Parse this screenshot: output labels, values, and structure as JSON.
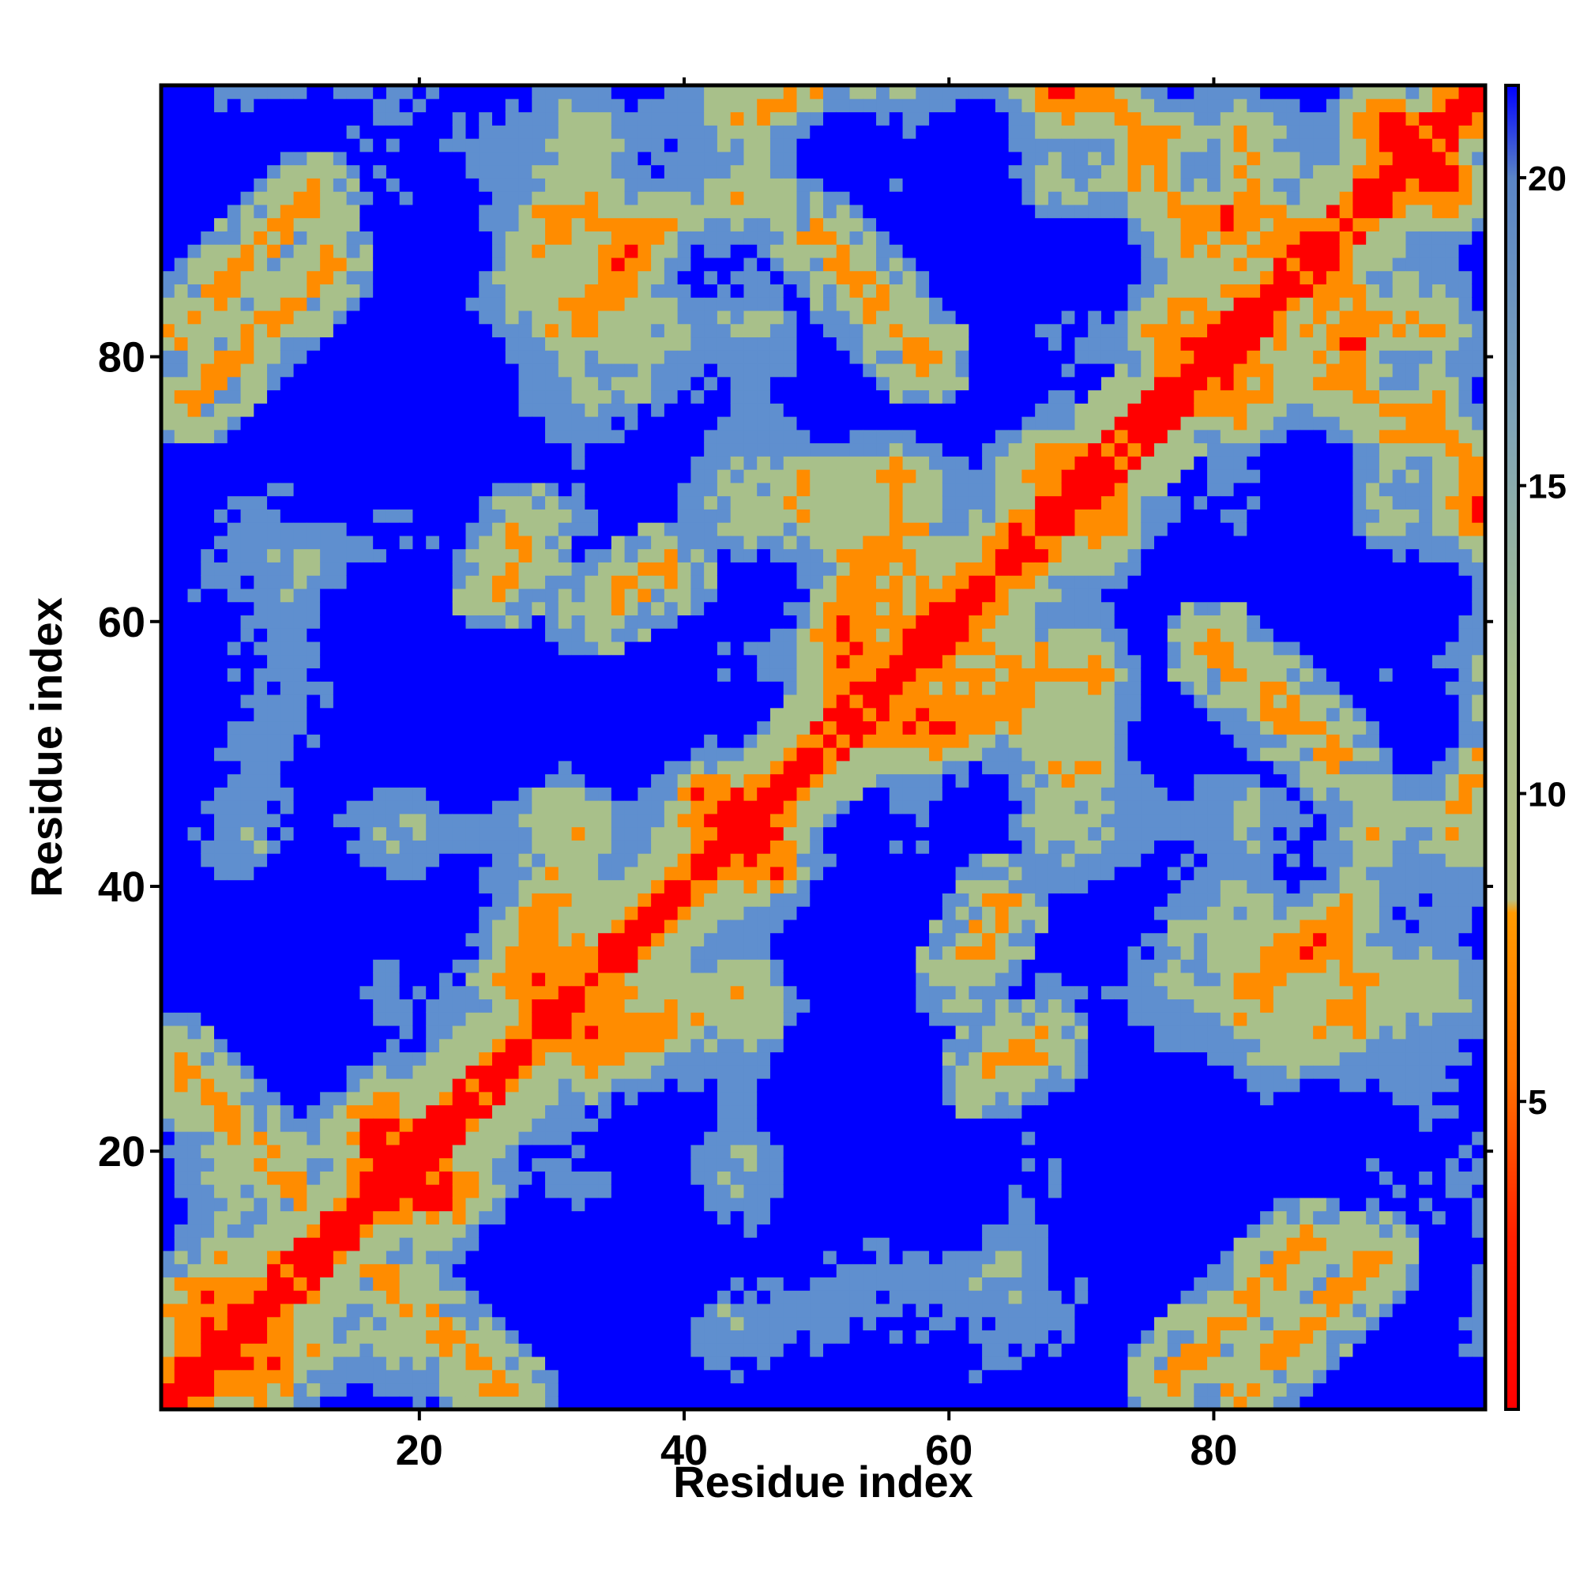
{
  "chart_data": {
    "type": "heatmap",
    "title": "",
    "xlabel": "Residue index",
    "ylabel": "Residue index",
    "n_residues": 100,
    "xlim": [
      1,
      100
    ],
    "ylim": [
      1,
      100
    ],
    "x_ticks": [
      20,
      40,
      60,
      80
    ],
    "y_ticks": [
      20,
      40,
      60,
      80
    ],
    "colorbar": {
      "ticks": [
        5,
        10,
        15,
        20
      ],
      "range": [
        0,
        21.5
      ],
      "colors": {
        "contact": "#ff0000",
        "close": "#ff8c00",
        "mid": "#a8c08a",
        "far": "#5f8fcf",
        "out_of_range": "#0000ff"
      }
    },
    "features": {
      "main_diagonal": {
        "from": [
          1,
          1
        ],
        "to": [
          100,
          100
        ],
        "value": 1.5
      },
      "antiparallel_contacts": [
        {
          "from": [
            2,
            82
          ],
          "to": [
            12,
            92
          ],
          "value": 6
        },
        {
          "from": [
            1,
            27
          ],
          "to": [
            10,
            18
          ],
          "value": 6
        },
        {
          "from": [
            17,
            11
          ],
          "to": [
            27,
            1
          ],
          "value": 6
        },
        {
          "from": [
            77,
            3
          ],
          "to": [
            87,
            13
          ],
          "value": 6
        },
        {
          "from": [
            51,
            88
          ],
          "to": [
            58,
            80
          ],
          "value": 6
        },
        {
          "from": [
            81,
            57
          ],
          "to": [
            89,
            50
          ],
          "value": 6
        }
      ],
      "parallel_contacts": [
        {
          "from": [
            33,
            61
          ],
          "to": [
            39,
            64
          ],
          "value": 7
        },
        {
          "from": [
            61,
            33
          ],
          "to": [
            64,
            39
          ],
          "value": 7
        },
        {
          "from": [
            63,
            26
          ],
          "to": [
            67,
            28
          ],
          "value": 7
        }
      ]
    }
  }
}
